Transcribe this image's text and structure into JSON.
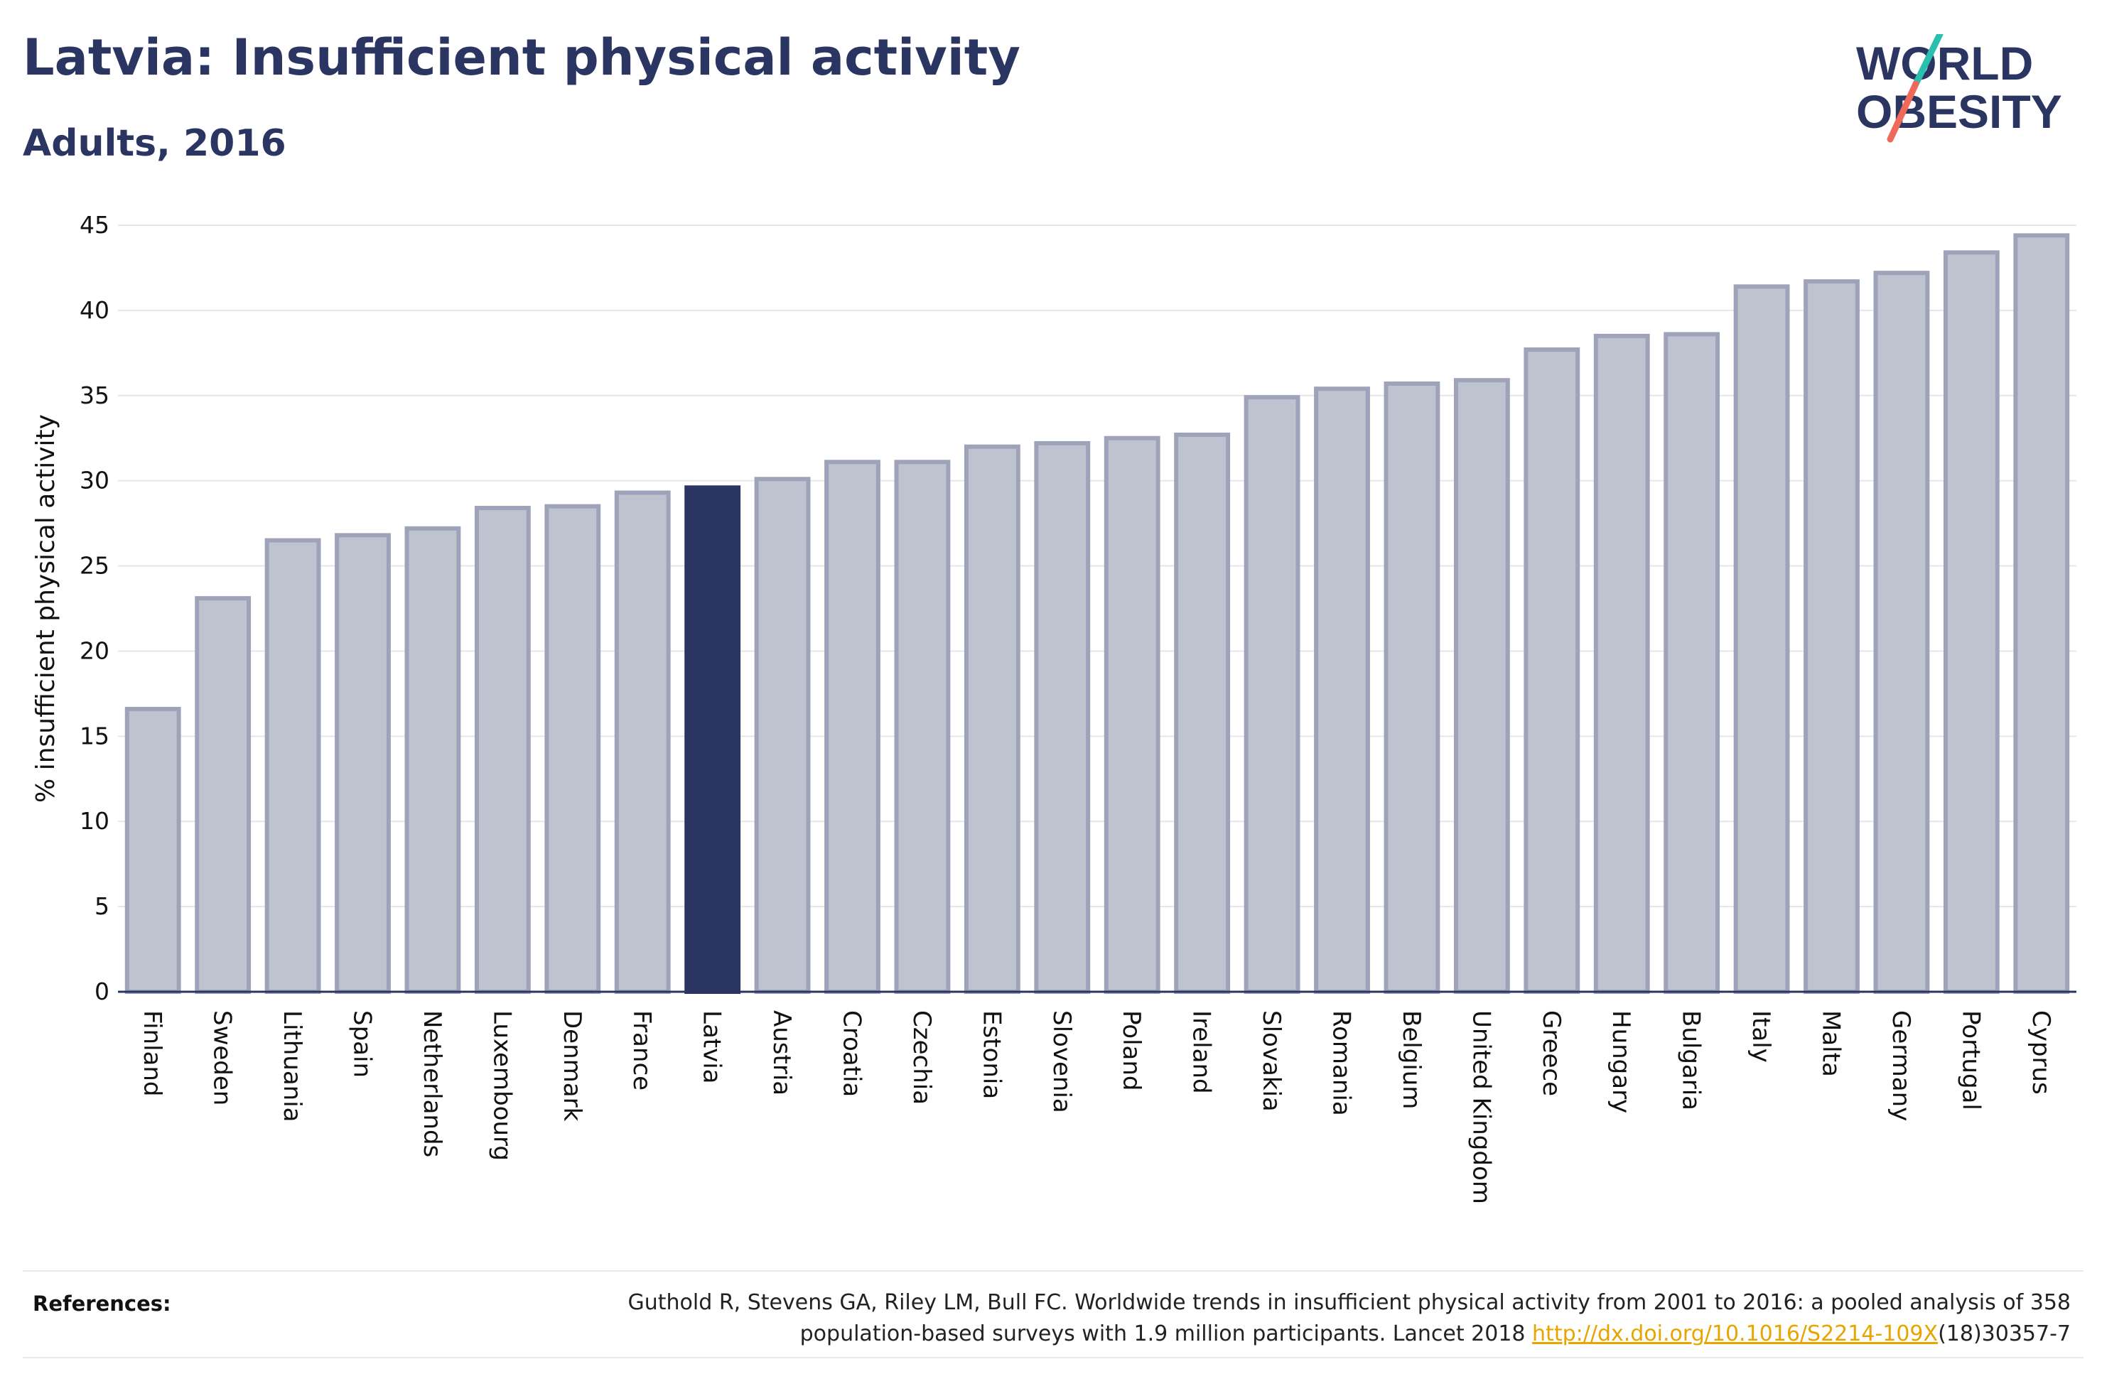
{
  "header": {
    "title": "Latvia: Insufficient physical activity",
    "subtitle": "Adults, 2016"
  },
  "logo": {
    "line1": "WORLD",
    "line2": "OBESITY",
    "colors": {
      "text": "#2b3562",
      "slash_top": "#2bbfb0",
      "slash_bottom": "#ef6a5a"
    }
  },
  "colors": {
    "bar_fill": "#bfc2cf",
    "bar_stroke": "#9ea3b9",
    "highlight_fill": "#2b3562",
    "grid": "#e6e6ea",
    "axis": "#2b3562"
  },
  "chart_data": {
    "type": "bar",
    "ylabel": "% insufficient physical activity",
    "ylim": [
      0,
      45
    ],
    "yticks": [
      0,
      5,
      10,
      15,
      20,
      25,
      30,
      35,
      40,
      45
    ],
    "grid": true,
    "highlight": "Latvia",
    "categories": [
      "Finland",
      "Sweden",
      "Lithuania",
      "Spain",
      "Netherlands",
      "Luxembourg",
      "Denmark",
      "France",
      "Latvia",
      "Austria",
      "Croatia",
      "Czechia",
      "Estonia",
      "Slovenia",
      "Poland",
      "Ireland",
      "Slovakia",
      "Romania",
      "Belgium",
      "United Kingdom",
      "Greece",
      "Hungary",
      "Bulgaria",
      "Italy",
      "Malta",
      "Germany",
      "Portugal",
      "Cyprus"
    ],
    "values": [
      16.6,
      23.1,
      26.5,
      26.8,
      27.2,
      28.4,
      28.5,
      29.3,
      29.6,
      30.1,
      31.1,
      31.1,
      32.0,
      32.2,
      32.5,
      32.7,
      34.9,
      35.4,
      35.7,
      35.9,
      37.7,
      38.5,
      38.6,
      41.4,
      41.7,
      42.2,
      43.4,
      44.4
    ]
  },
  "footer": {
    "references_label": "References:",
    "reference_line1": "Guthold R, Stevens GA, Riley LM, Bull FC. Worldwide trends in insufficient physical activity from 2001 to 2016: a pooled analysis of 358",
    "reference_line2_pre": "population-based surveys with 1.9 million participants. Lancet 2018 ",
    "reference_link": "http://dx.doi.org/10.1016/S2214-109X",
    "reference_line2_post": "(18)30357-7"
  }
}
